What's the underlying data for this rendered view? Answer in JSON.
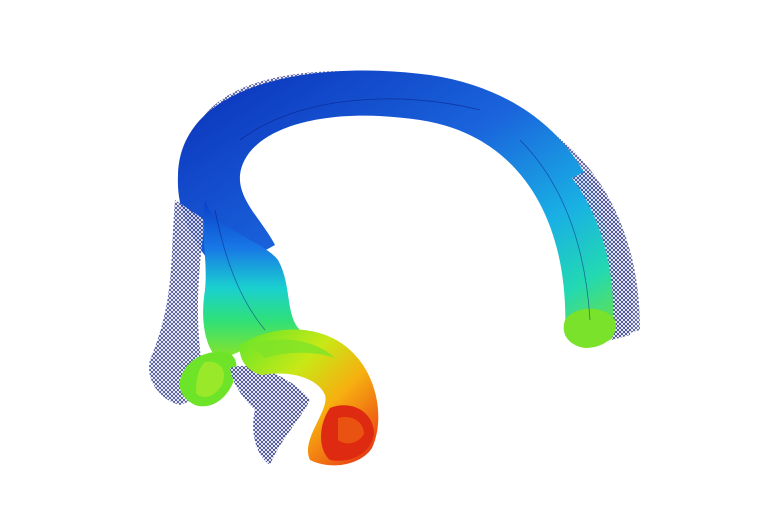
{
  "scene": {
    "subject": "fea-deformed-clip",
    "colormap": [
      "#08138f",
      "#0a3ec8",
      "#1976e8",
      "#19b4e6",
      "#1fdcc8",
      "#2ee07a",
      "#5ee62c",
      "#a6e81c",
      "#e6e412",
      "#f6a510",
      "#f06414",
      "#dd2a10"
    ],
    "mesh_color": "#101a7a",
    "background": "#ffffff"
  }
}
